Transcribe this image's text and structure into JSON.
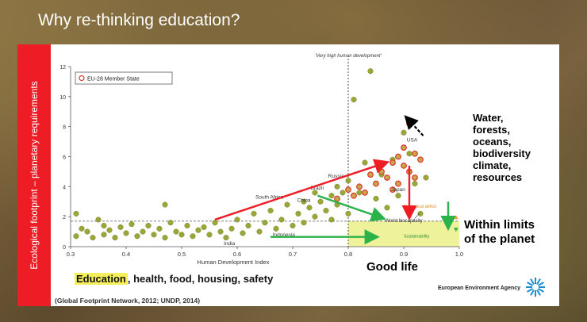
{
  "slide": {
    "title": "Why re-thinking education?"
  },
  "side_label": "Ecological footprint – planetary requirements",
  "right_labels": {
    "impacts": [
      "Water,",
      "forests,",
      "oceans,",
      "biodiversity",
      "climate,",
      "resources"
    ],
    "limits": [
      "Within limits",
      "of the planet"
    ],
    "good_life": "Good life"
  },
  "bottom": {
    "education": "Education",
    "rest": ", health, food, housing, safety",
    "source": "(Global Footprint Network, 2012; UNDP, 2014)",
    "agency": "European Environment Agency"
  },
  "colors": {
    "red_bar": "#ee1c25",
    "point_fill": "#9aa63a",
    "eu_marker": "#e0342a",
    "arrow_red": "#ee1c25",
    "arrow_green": "#2bb34a",
    "sustainability_zone": "#eef29a",
    "eea_logo": "#1f8fd0"
  },
  "chart_data": {
    "type": "scatter",
    "xlabel": "Human Development Index",
    "ylabel": "",
    "xlim": [
      0.3,
      1.0
    ],
    "ylim": [
      0,
      12
    ],
    "xticks": [
      "0.3",
      "0.4",
      "0.5",
      "0.6",
      "0.7",
      "0.8",
      "0.9",
      "1.0"
    ],
    "yticks": [
      "0",
      "2",
      "4",
      "6",
      "8",
      "10",
      "12"
    ],
    "legend": {
      "label": "EU-28 Member State",
      "position": "top-left"
    },
    "very_high_label": "'Very high human development'",
    "threshold_hdi": 0.8,
    "world_biocapacity": 1.7,
    "reference_labels": {
      "world_biocapacity": "World biocapacity",
      "ecological_deficit": "Ecological deficit",
      "sustainability": "Sustainability"
    },
    "country_labels": [
      {
        "name": "USA",
        "x": 0.915,
        "y": 7.0
      },
      {
        "name": "Russia",
        "x": 0.778,
        "y": 4.6
      },
      {
        "name": "South Africa",
        "x": 0.658,
        "y": 3.2
      },
      {
        "name": "China",
        "x": 0.72,
        "y": 3.0
      },
      {
        "name": "Brazil",
        "x": 0.744,
        "y": 3.8
      },
      {
        "name": "Japan",
        "x": 0.89,
        "y": 3.7
      },
      {
        "name": "Indonesia",
        "x": 0.684,
        "y": 0.7
      },
      {
        "name": "India",
        "x": 0.586,
        "y": 0.1
      }
    ],
    "series": [
      {
        "name": "Countries",
        "points": [
          [
            0.31,
            2.2
          ],
          [
            0.31,
            0.7
          ],
          [
            0.32,
            1.2
          ],
          [
            0.33,
            1.0
          ],
          [
            0.34,
            0.6
          ],
          [
            0.35,
            1.8
          ],
          [
            0.36,
            1.4
          ],
          [
            0.36,
            0.8
          ],
          [
            0.37,
            1.1
          ],
          [
            0.38,
            0.6
          ],
          [
            0.39,
            1.3
          ],
          [
            0.4,
            0.9
          ],
          [
            0.41,
            1.5
          ],
          [
            0.42,
            0.7
          ],
          [
            0.43,
            1.0
          ],
          [
            0.44,
            1.4
          ],
          [
            0.45,
            0.8
          ],
          [
            0.46,
            1.2
          ],
          [
            0.47,
            0.6
          ],
          [
            0.47,
            2.8
          ],
          [
            0.48,
            1.6
          ],
          [
            0.49,
            1.0
          ],
          [
            0.5,
            0.8
          ],
          [
            0.51,
            1.4
          ],
          [
            0.52,
            0.7
          ],
          [
            0.53,
            1.1
          ],
          [
            0.54,
            1.3
          ],
          [
            0.55,
            0.8
          ],
          [
            0.56,
            1.6
          ],
          [
            0.57,
            1.0
          ],
          [
            0.58,
            0.6
          ],
          [
            0.59,
            1.2
          ],
          [
            0.6,
            1.8
          ],
          [
            0.61,
            0.9
          ],
          [
            0.62,
            1.4
          ],
          [
            0.63,
            2.2
          ],
          [
            0.64,
            1.0
          ],
          [
            0.65,
            1.6
          ],
          [
            0.66,
            2.4
          ],
          [
            0.67,
            1.2
          ],
          [
            0.68,
            1.8
          ],
          [
            0.69,
            2.8
          ],
          [
            0.7,
            1.4
          ],
          [
            0.71,
            2.2
          ],
          [
            0.72,
            3.0
          ],
          [
            0.72,
            1.6
          ],
          [
            0.73,
            2.6
          ],
          [
            0.74,
            3.6
          ],
          [
            0.74,
            2.0
          ],
          [
            0.75,
            3.0
          ],
          [
            0.76,
            2.4
          ],
          [
            0.77,
            3.4
          ],
          [
            0.77,
            1.8
          ],
          [
            0.78,
            4.0
          ],
          [
            0.78,
            2.8
          ],
          [
            0.79,
            3.6
          ],
          [
            0.8,
            4.4
          ],
          [
            0.8,
            2.2
          ],
          [
            0.81,
            9.8
          ],
          [
            0.82,
            3.6
          ],
          [
            0.83,
            5.6
          ],
          [
            0.84,
            11.7
          ],
          [
            0.85,
            3.2
          ],
          [
            0.86,
            4.8
          ],
          [
            0.87,
            2.6
          ],
          [
            0.88,
            5.8
          ],
          [
            0.89,
            3.4
          ],
          [
            0.9,
            7.6
          ],
          [
            0.91,
            6.2
          ],
          [
            0.92,
            4.2
          ],
          [
            0.93,
            2.2
          ],
          [
            0.94,
            4.6
          ]
        ]
      },
      {
        "name": "EU-28 Member State",
        "points": [
          [
            0.78,
            3.2
          ],
          [
            0.8,
            3.8
          ],
          [
            0.81,
            3.4
          ],
          [
            0.82,
            4.0
          ],
          [
            0.83,
            3.6
          ],
          [
            0.84,
            4.8
          ],
          [
            0.85,
            4.2
          ],
          [
            0.86,
            5.0
          ],
          [
            0.87,
            4.6
          ],
          [
            0.88,
            5.6
          ],
          [
            0.88,
            3.8
          ],
          [
            0.89,
            6.0
          ],
          [
            0.89,
            4.2
          ],
          [
            0.9,
            5.4
          ],
          [
            0.9,
            6.6
          ],
          [
            0.91,
            5.0
          ],
          [
            0.91,
            8.2
          ],
          [
            0.92,
            6.2
          ],
          [
            0.92,
            4.6
          ],
          [
            0.93,
            5.8
          ]
        ]
      }
    ]
  }
}
